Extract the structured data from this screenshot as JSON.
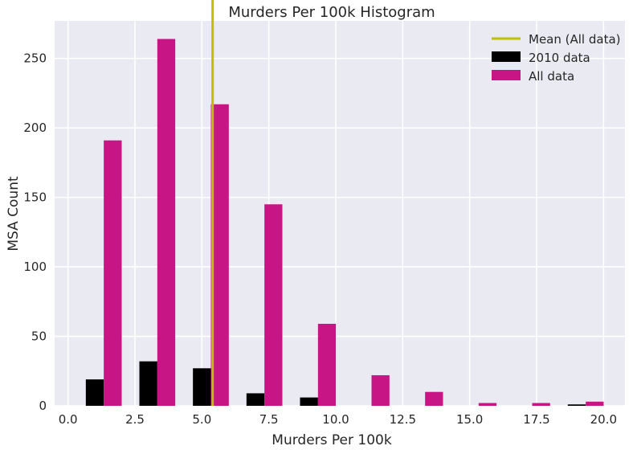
{
  "chart_data": {
    "type": "bar",
    "title": "Murders Per 100k Histogram",
    "xlabel": "Murders Per 100k",
    "ylabel": "MSA Count",
    "xlim": [
      -0.5,
      20.8
    ],
    "ylim": [
      0,
      277
    ],
    "xticks": [
      0.0,
      2.5,
      5.0,
      7.5,
      10.0,
      12.5,
      15.0,
      17.5,
      20.0
    ],
    "xtick_labels": [
      "0.0",
      "2.5",
      "5.0",
      "7.5",
      "10.0",
      "12.5",
      "15.0",
      "17.5",
      "20.0"
    ],
    "yticks": [
      0,
      50,
      100,
      150,
      200,
      250
    ],
    "ytick_labels": [
      "0",
      "50",
      "100",
      "150",
      "200",
      "250"
    ],
    "grid": true,
    "legend_position": "top-right",
    "series": [
      {
        "name": "2010 data",
        "color": "#000000",
        "bar_width": 0.67,
        "x": [
          1.0,
          3.0,
          5.0,
          7.0,
          9.0,
          11.0,
          13.0,
          15.0,
          17.0,
          19.0
        ],
        "values": [
          19,
          32,
          27,
          9,
          6,
          0,
          0,
          0,
          0,
          1
        ]
      },
      {
        "name": "All data",
        "color": "#c71585",
        "bar_width": 0.67,
        "x": [
          1.67,
          3.67,
          5.67,
          7.67,
          9.67,
          11.67,
          13.67,
          15.67,
          17.67,
          19.67
        ],
        "values": [
          191,
          264,
          217,
          145,
          59,
          22,
          10,
          2,
          2,
          3
        ]
      }
    ],
    "mean_line": {
      "name": "Mean (All data)",
      "x": 5.4,
      "color": "#bfbf00"
    }
  }
}
